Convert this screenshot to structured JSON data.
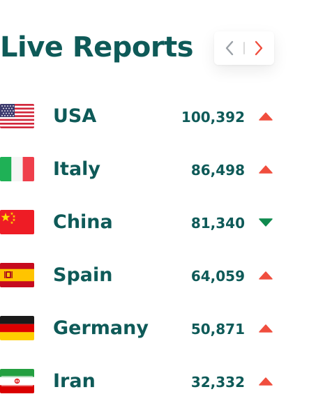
{
  "header": {
    "title": "Live Reports"
  },
  "pager": {
    "prev_icon": "chevron-left-icon",
    "next_icon": "chevron-right-icon",
    "prev_color": "#9aa0a6",
    "next_color": "#f04e3e"
  },
  "colors": {
    "text": "#0e5a58",
    "trend_up": "#f04e3e",
    "trend_down": "#0f8a4e"
  },
  "reports": [
    {
      "country": "USA",
      "count": "100,392",
      "trend": "up",
      "flag": "usa-flag-icon"
    },
    {
      "country": "Italy",
      "count": "86,498",
      "trend": "up",
      "flag": "italy-flag-icon"
    },
    {
      "country": "China",
      "count": "81,340",
      "trend": "down",
      "flag": "china-flag-icon"
    },
    {
      "country": "Spain",
      "count": "64,059",
      "trend": "up",
      "flag": "spain-flag-icon"
    },
    {
      "country": "Germany",
      "count": "50,871",
      "trend": "up",
      "flag": "germany-flag-icon"
    },
    {
      "country": "Iran",
      "count": "32,332",
      "trend": "up",
      "flag": "iran-flag-icon"
    }
  ]
}
